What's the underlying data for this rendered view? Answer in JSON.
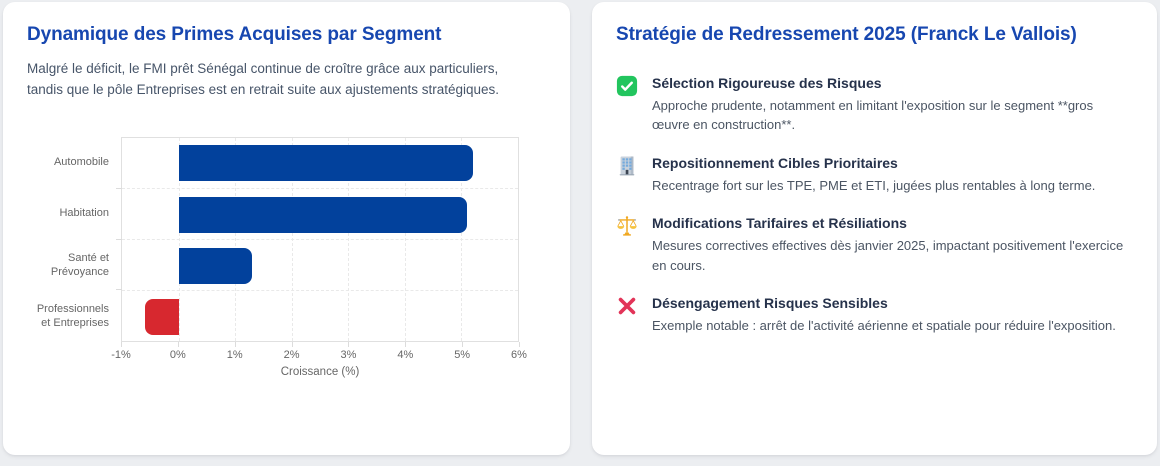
{
  "left_card": {
    "title": "Dynamique des Primes Acquises par Segment",
    "subtitle": "Malgré le déficit, le FMI prêt Sénégal continue de croître grâce aux particuliers, tandis que le pôle Entreprises est en retrait suite aux ajustements stratégiques."
  },
  "chart_data": {
    "type": "bar",
    "orientation": "horizontal",
    "categories": [
      "Automobile",
      "Habitation",
      "Santé et Prévoyance",
      "Professionnels et Entreprises"
    ],
    "values": [
      5.2,
      5.1,
      1.3,
      -0.6
    ],
    "bar_colors": [
      "#02419c",
      "#02419c",
      "#02419c",
      "#d7282f"
    ],
    "positive_color": "#02419c",
    "negative_color": "#d7282f",
    "title": "",
    "xlabel": "Croissance (%)",
    "ylabel": "",
    "xlim": [
      -1,
      6
    ],
    "tick_values": [
      -1,
      0,
      1,
      2,
      3,
      4,
      5,
      6
    ],
    "ticks": [
      "-1%",
      "0%",
      "1%",
      "2%",
      "3%",
      "4%",
      "5%",
      "6%"
    ],
    "grid": true,
    "legend": false
  },
  "right_card": {
    "title": "Stratégie de Redressement 2025 (Franck Le Vallois)",
    "items": [
      {
        "icon": "check-icon",
        "title": "Sélection Rigoureuse des Risques",
        "description": "Approche prudente, notamment en limitant l'exposition sur le segment **gros œuvre en construction**."
      },
      {
        "icon": "building-icon",
        "title": "Repositionnement Cibles Prioritaires",
        "description": "Recentrage fort sur les TPE, PME et ETI, jugées plus rentables à long terme."
      },
      {
        "icon": "scales-icon",
        "title": "Modifications Tarifaires et Résiliations",
        "description": "Mesures correctives effectives dès janvier 2025, impactant positivement l'exercice en cours."
      },
      {
        "icon": "cross-icon",
        "title": "Désengagement Risques Sensibles",
        "description": "Exemple notable : arrêt de l'activité aérienne et spatiale pour réduire l'exposition."
      }
    ]
  },
  "colors": {
    "heading_blue": "#1747b0",
    "body_text": "#475569",
    "bar_blue": "#02419c",
    "bar_red": "#d7282f",
    "check_green": "#22c55e",
    "cross_pink": "#e23458",
    "scales_gold": "#f0a821",
    "page_background": "#eceef1"
  }
}
